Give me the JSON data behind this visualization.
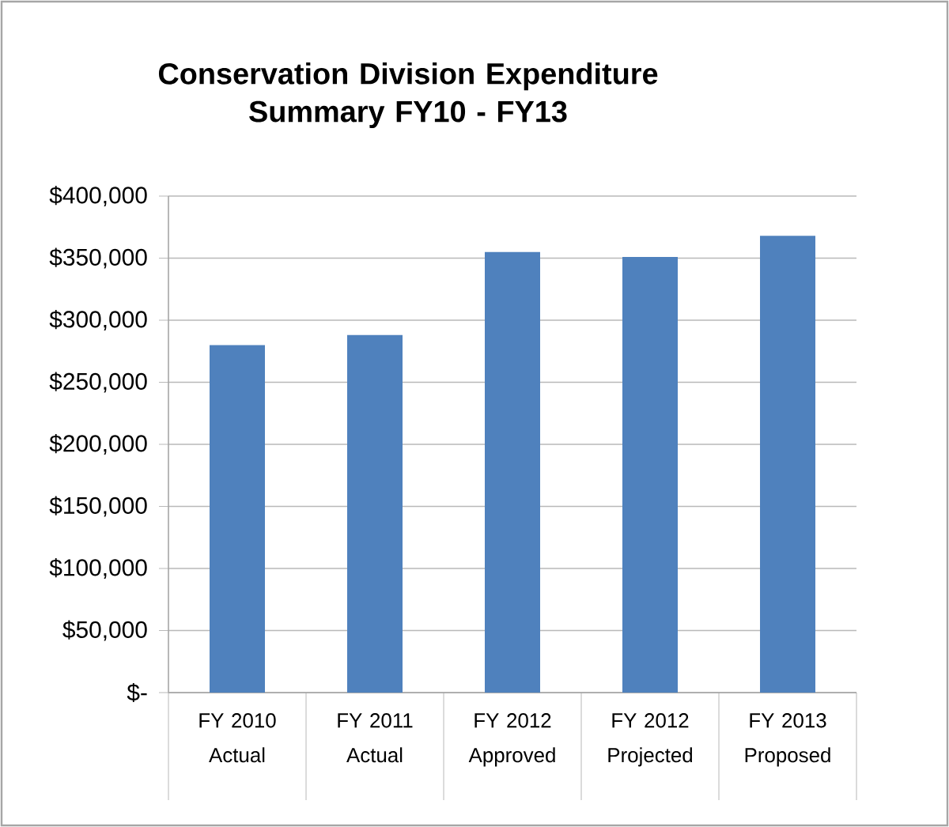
{
  "chart_data": {
    "type": "bar",
    "title": "Conservation Division Expenditure Summary FY10 - FY13",
    "categories": [
      "FY 2010 Actual",
      "FY 2011 Actual",
      "FY 2012 Approved",
      "FY 2012 Projected",
      "FY 2013 Proposed"
    ],
    "values": [
      280000,
      288000,
      355000,
      351000,
      368000
    ],
    "color": "#4f81bd",
    "ylim": [
      0,
      400000
    ],
    "yticks": [
      {
        "value": 0,
        "label": "$-"
      },
      {
        "value": 50000,
        "label": "$50,000"
      },
      {
        "value": 100000,
        "label": "$100,000"
      },
      {
        "value": 150000,
        "label": "$150,000"
      },
      {
        "value": 200000,
        "label": "$200,000"
      },
      {
        "value": 250000,
        "label": "$250,000"
      },
      {
        "value": 300000,
        "label": "$300,000"
      },
      {
        "value": 350000,
        "label": "$350,000"
      },
      {
        "value": 400000,
        "label": "$400,000"
      }
    ],
    "grid": "y"
  }
}
